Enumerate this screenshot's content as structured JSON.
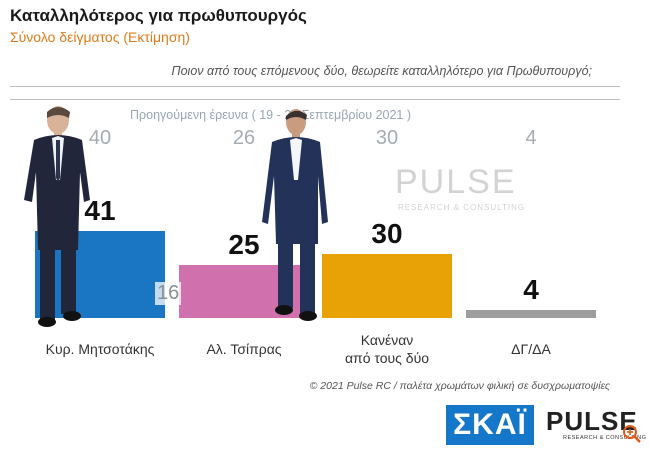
{
  "header": {
    "title": "Καταλληλότερος για πρωθυπουργός",
    "subtitle": "Σύνολο δείγματος   (Εκτίμηση)",
    "question": "Ποιον από τους επόμενους δύο, θεωρείτε καταλληλότερο για Πρωθυπουργό;"
  },
  "chart_data": {
    "type": "bar",
    "title": "Καταλληλότερος για πρωθυπουργός",
    "categories": [
      "Κυρ. Μητσοτάκης",
      "Αλ. Τσίπρας",
      "Κανέναν από τους δύο",
      "ΔΓ/ΔΑ"
    ],
    "series": [
      {
        "name": "",
        "values": [
          41,
          25,
          30,
          4
        ],
        "colors": [
          "#1a76c2",
          "#d070ac",
          "#e9a206",
          "#9e9e9e"
        ]
      },
      {
        "name": "Προηγούμενη έρευνα  ( 19 - 21 Σεπτεμβρίου  2021 )",
        "values": [
          40,
          26,
          30,
          4
        ]
      }
    ],
    "ylim": [
      0,
      50
    ],
    "grid": false
  },
  "bars": [
    {
      "label_line1": "Κυρ. Μητσοτάκης",
      "label_line2": "",
      "value": "41",
      "prev": "40"
    },
    {
      "label_line1": "Αλ. Τσίπρας",
      "label_line2": "",
      "value": "25",
      "prev": "26"
    },
    {
      "label_line1": "Κανέναν",
      "label_line2": "από τους δύο",
      "value": "30",
      "prev": "30"
    },
    {
      "label_line1": "ΔΓ/ΔΑ",
      "label_line2": "",
      "value": "4",
      "prev": "4"
    }
  ],
  "prev_caption": "Προηγούμενη έρευνα  ( 19 - 21 Σεπτεμβρίου  2021 )",
  "overlay_number": "16",
  "watermark": {
    "main": "PULSE",
    "sub": "RESEARCH & CONSULTING"
  },
  "footer": "© 2021 Pulse RC  /  παλέτα χρωμάτων φιλική σε δυσχρωματοψίες",
  "logos": {
    "skai": "ΣΚΑΪ",
    "pulse": "PULSE",
    "pulse_sub": "RESEARCH & CONSULTING"
  }
}
